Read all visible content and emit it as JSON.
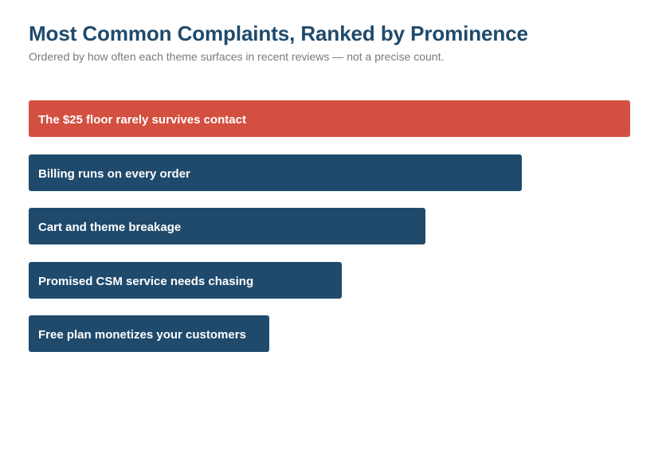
{
  "header": {
    "title": "Most Common Complaints, Ranked by Prominence",
    "subtitle": "Ordered by how often each theme surfaces in recent reviews — not a precise count."
  },
  "colors": {
    "highlight": "#d35040",
    "default": "#1f4a6c"
  },
  "chart_data": {
    "type": "bar",
    "orientation": "horizontal",
    "title": "Most Common Complaints, Ranked by Prominence",
    "subtitle": "Ordered by how often each theme surfaces in recent reviews — not a precise count.",
    "categories": [
      "The $25 floor rarely survives contact",
      "Billing runs on every order",
      "Cart and theme breakage",
      "Promised CSM service needs chasing",
      "Free plan monetizes your customers"
    ],
    "values": [
      100,
      82,
      66,
      52,
      40
    ],
    "highlighted_index": 0,
    "xlabel": "",
    "ylabel": "",
    "xlim": [
      0,
      100
    ],
    "grid": false,
    "legend": "none"
  }
}
